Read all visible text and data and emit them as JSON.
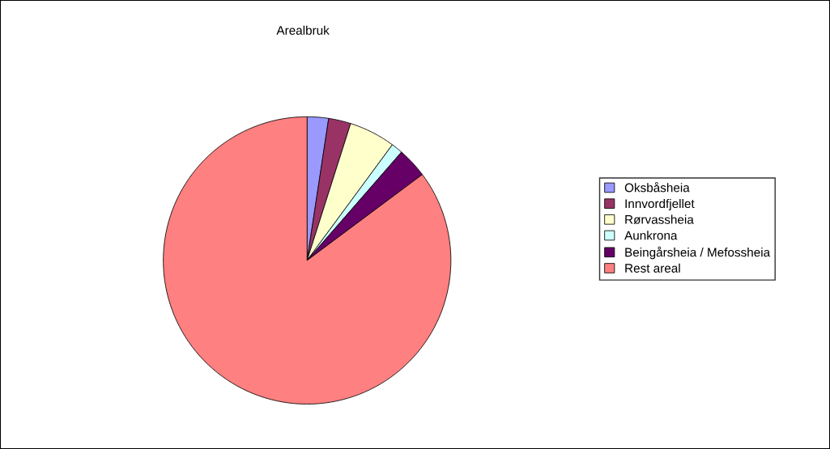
{
  "chart_data": {
    "type": "pie",
    "title": "Arealbruk",
    "categories": [
      "Oksbåsheia",
      "Innvordfjellet",
      "Rørvassheia",
      "Aunkrona",
      "Beingårsheia / Mefossheia",
      "Rest areal"
    ],
    "values": [
      2.4,
      2.5,
      5.2,
      1.3,
      3.4,
      85.2
    ],
    "colors": [
      "#9999ff",
      "#993366",
      "#ffffcc",
      "#ccffff",
      "#660066",
      "#ff8080"
    ],
    "legend": "right"
  }
}
